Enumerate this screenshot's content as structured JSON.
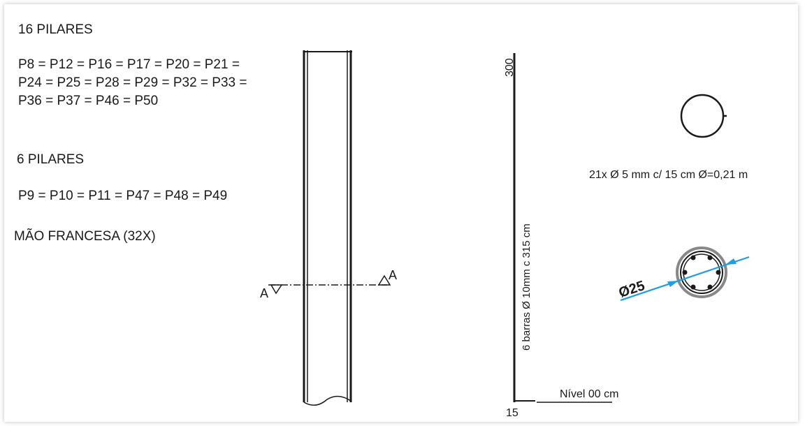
{
  "group1": {
    "title": "16 PILARES",
    "lines": [
      "P8 = P12 = P16 = P17 = P20 = P21 =",
      "P24 = P25 = P28 = P29 = P32 = P33 =",
      "P36 = P37 = P46 = P50"
    ]
  },
  "group2": {
    "title": "6 PILARES",
    "line": "P9 = P10 = P11 = P47 = P48 = P49"
  },
  "note": "MÃO FRANCESA (32X)",
  "section_marks": {
    "left": "A",
    "right": "A"
  },
  "elevation": {
    "top_label": "300",
    "bottom_label": "15",
    "rebar_label": "6 barras Ø  10mm c 315 cm",
    "level_label": "Nível 00 cm"
  },
  "stirrup": {
    "label": "21x Ø 5 mm c/ 15 cm Ø=0,21 m"
  },
  "section": {
    "diameter_label": "Ø25"
  },
  "colors": {
    "ink": "#1a1a1a",
    "dimension": "#1e9fe0"
  }
}
